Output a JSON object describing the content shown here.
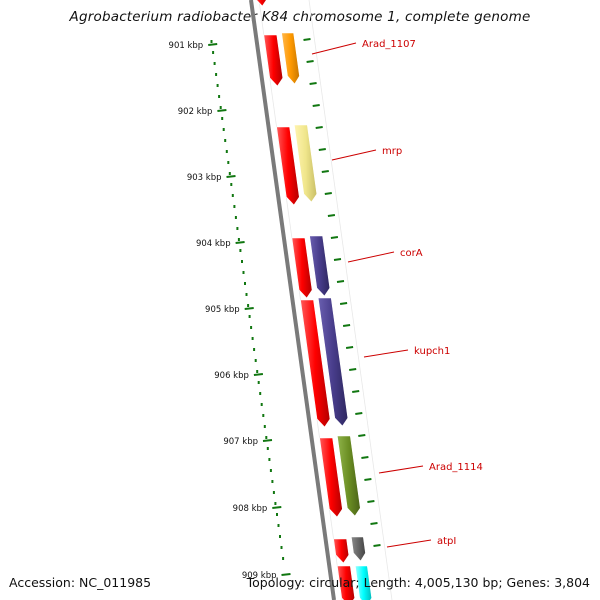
{
  "title": "Agrobacterium radiobacter K84 chromosome 1, complete genome",
  "footer": {
    "accession": "Accession: NC_011985",
    "summary": "Topology: circular; Length: 4,005,130 bp; Genes: 3,804"
  },
  "scale_labels": [
    "901 kbp",
    "902 kbp",
    "903 kbp",
    "904 kbp",
    "905 kbp",
    "906 kbp",
    "907 kbp",
    "908 kbp",
    "909 kbp"
  ],
  "gene_labels": [
    "Arad_1107",
    "mrp",
    "corA",
    "kupch1",
    "Arad_1114",
    "atpI"
  ],
  "colors": {
    "backbone": "#7a7a7a",
    "cds_strand": "#ff0000",
    "tick": "#117711",
    "label": "#cc0000",
    "gene_orange": "#ff9900",
    "gene_pale_yellow": "#f0e68c",
    "gene_dark_slate_blue": "#483d8b",
    "gene_olive": "#6b8e23",
    "gene_gray": "#666666",
    "gene_cyan": "#00ffff"
  }
}
